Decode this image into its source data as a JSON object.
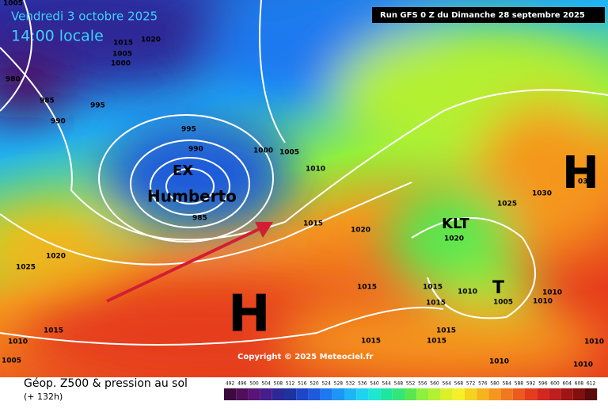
{
  "header": {
    "date": "Vendredi 3 octobre 2025",
    "time": "14:00 locale",
    "run": "Run GFS 0 Z du Dimanche 28 septembre 2025"
  },
  "isobar_labels": [
    "1005",
    "1015",
    "1020",
    "1005",
    "1000",
    "980",
    "985",
    "995",
    "990",
    "995",
    "990",
    "1000",
    "1005",
    "1010",
    "1015",
    "1020",
    "1020",
    "1025",
    "1025",
    "1030",
    "035",
    "1020",
    "1015",
    "1015",
    "1015",
    "1010",
    "1005",
    "1010",
    "1010",
    "1015",
    "1010",
    "1005",
    "1015",
    "1015",
    "1015",
    "1010",
    "1010",
    "1010",
    "985"
  ],
  "systems": {
    "storm_tag": "EX",
    "storm_name": "Humberto",
    "high_west": "H",
    "high_east": "H",
    "low_balkans": "KLT",
    "low_greece": "T"
  },
  "copyright": "Copyright © 2025 Meteociel.fr",
  "footer": {
    "title": "Géop. Z500 & pression au sol",
    "subtitle": "(+ 132h)"
  },
  "colorbar": {
    "ticks": [
      492,
      496,
      500,
      504,
      508,
      512,
      516,
      520,
      524,
      528,
      532,
      536,
      540,
      544,
      548,
      552,
      556,
      560,
      564,
      568,
      572,
      576,
      580,
      584,
      588,
      592,
      596,
      600,
      604,
      608,
      612
    ],
    "colors": [
      "#3c0a3c",
      "#500f5a",
      "#5a1478",
      "#461e8c",
      "#2d2896",
      "#1e32a0",
      "#1e46c8",
      "#1e5adc",
      "#1e78f0",
      "#1e96f5",
      "#1eb4f5",
      "#1ed2f0",
      "#1ee6d2",
      "#1ee6a0",
      "#32e678",
      "#5ae650",
      "#8cf03c",
      "#b4f032",
      "#dcf028",
      "#f5f028",
      "#f5d21e",
      "#f5b41e",
      "#f5961e",
      "#f0781e",
      "#eb5a1e",
      "#e63c1e",
      "#d2281e",
      "#be1e1e",
      "#a01414",
      "#820f0f",
      "#5a0a0a"
    ]
  }
}
